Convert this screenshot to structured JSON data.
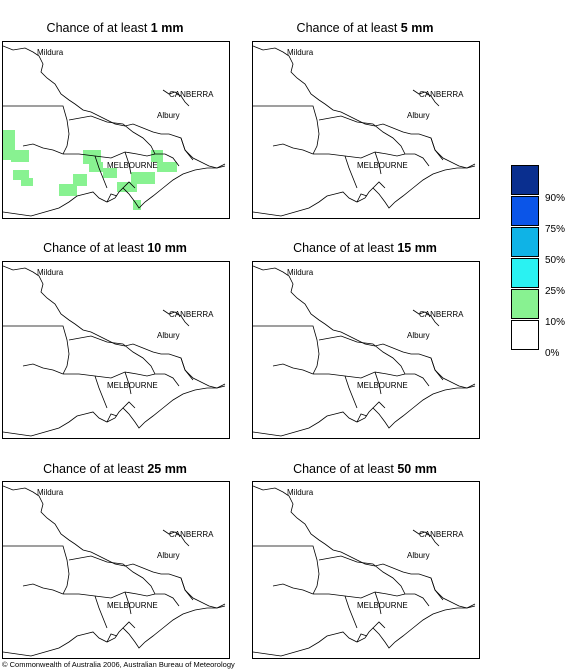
{
  "panels": [
    {
      "prefix": "Chance of at least ",
      "amount": "1 mm"
    },
    {
      "prefix": "Chance of at least ",
      "amount": "5 mm"
    },
    {
      "prefix": "Chance of at least ",
      "amount": "10 mm"
    },
    {
      "prefix": "Chance of at least ",
      "amount": "15 mm"
    },
    {
      "prefix": "Chance of at least ",
      "amount": "25 mm"
    },
    {
      "prefix": "Chance of at least ",
      "amount": "50 mm"
    }
  ],
  "map_labels": {
    "mildura": "Mildura",
    "canberra": "CANBERRA",
    "albury": "Albury",
    "melbourne": "MELBOURNE"
  },
  "legend": {
    "colors": [
      "#0a2f8f",
      "#0b55e8",
      "#0fb3e6",
      "#2af2f2",
      "#88f291",
      "#ffffff"
    ],
    "labels": [
      "90%",
      "75%",
      "50%",
      "25%",
      "10%",
      "0%"
    ]
  },
  "colors": {
    "chance_10_25": "#88f291"
  },
  "copyright": "© Commonwealth of Australia 2006, Australian Bureau of Meteorology"
}
